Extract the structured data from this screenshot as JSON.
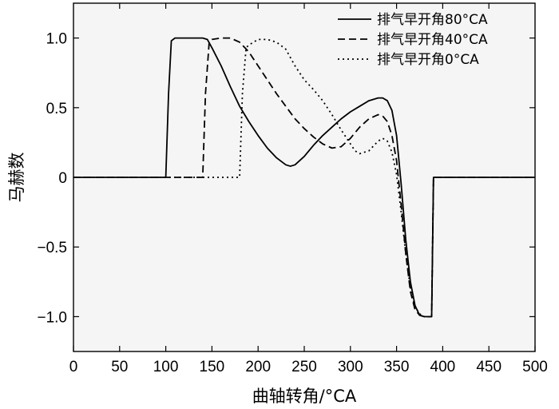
{
  "chart_data": {
    "type": "line",
    "title": "",
    "xlabel": "曲轴转角/°CA",
    "ylabel": "马赫数",
    "xlim": [
      0,
      500
    ],
    "ylim": [
      -1.25,
      1.25
    ],
    "xticks": [
      0,
      50,
      100,
      150,
      200,
      250,
      300,
      350,
      400,
      450,
      500
    ],
    "yticks": [
      1.0,
      0.5,
      0,
      -0.5,
      -1.0
    ],
    "ytick_labels": [
      "1.0",
      "0.5",
      "0",
      "−0.5",
      "−1.0"
    ],
    "grid": false,
    "legend_position": "top-right",
    "background": "#f5f5f5",
    "series": [
      {
        "name": "排气早开角80°CA",
        "style": "solid",
        "color": "#000000",
        "x": [
          0,
          100,
          103,
          106,
          110,
          120,
          130,
          140,
          145,
          150,
          160,
          170,
          180,
          190,
          200,
          210,
          220,
          230,
          235,
          240,
          250,
          260,
          270,
          280,
          290,
          300,
          310,
          320,
          330,
          335,
          340,
          345,
          350,
          355,
          360,
          365,
          370,
          375,
          380,
          388,
          389,
          390,
          500
        ],
        "y": [
          0,
          0,
          0.6,
          0.98,
          1.0,
          1.0,
          1.0,
          1.0,
          0.99,
          0.93,
          0.8,
          0.65,
          0.51,
          0.4,
          0.3,
          0.21,
          0.14,
          0.09,
          0.08,
          0.09,
          0.15,
          0.23,
          0.3,
          0.36,
          0.42,
          0.47,
          0.51,
          0.55,
          0.57,
          0.57,
          0.55,
          0.48,
          0.3,
          -0.05,
          -0.45,
          -0.75,
          -0.92,
          -0.99,
          -1.0,
          -1.0,
          -0.5,
          0,
          0
        ]
      },
      {
        "name": "排气早开角40°CA",
        "style": "dashed",
        "color": "#000000",
        "x": [
          0,
          140,
          143,
          147,
          150,
          160,
          170,
          180,
          190,
          200,
          210,
          220,
          230,
          240,
          250,
          260,
          270,
          280,
          290,
          300,
          310,
          320,
          330,
          335,
          340,
          345,
          350,
          355,
          360,
          365,
          370,
          375,
          380,
          388,
          389,
          390,
          500
        ],
        "y": [
          0,
          0,
          0.6,
          0.97,
          0.99,
          1.0,
          1.0,
          0.97,
          0.9,
          0.8,
          0.7,
          0.6,
          0.51,
          0.42,
          0.35,
          0.29,
          0.24,
          0.21,
          0.22,
          0.28,
          0.36,
          0.42,
          0.45,
          0.44,
          0.4,
          0.3,
          0.12,
          -0.2,
          -0.55,
          -0.82,
          -0.95,
          -0.99,
          -1.0,
          -1.0,
          -0.5,
          0,
          0
        ]
      },
      {
        "name": "排气早开角0°CA",
        "style": "dotted",
        "color": "#000000",
        "x": [
          0,
          180,
          183,
          187,
          190,
          200,
          210,
          220,
          230,
          240,
          250,
          260,
          270,
          280,
          290,
          300,
          305,
          310,
          320,
          330,
          335,
          340,
          345,
          350,
          355,
          360,
          365,
          370,
          375,
          380,
          385,
          388,
          389,
          390,
          500
        ],
        "y": [
          0,
          0,
          0.6,
          0.93,
          0.95,
          0.99,
          0.99,
          0.97,
          0.92,
          0.8,
          0.7,
          0.63,
          0.55,
          0.45,
          0.34,
          0.24,
          0.19,
          0.17,
          0.19,
          0.26,
          0.28,
          0.26,
          0.18,
          0.02,
          -0.25,
          -0.55,
          -0.8,
          -0.93,
          -0.98,
          -1.0,
          -1.0,
          -1.0,
          -0.5,
          0,
          0
        ]
      }
    ]
  }
}
